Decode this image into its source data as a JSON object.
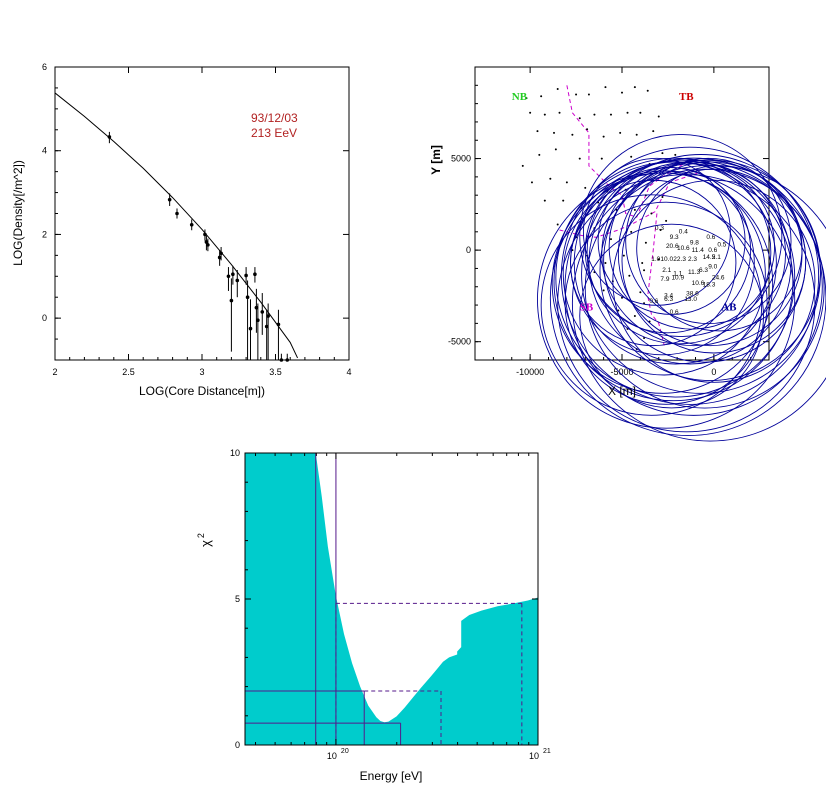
{
  "chart_data": [
    {
      "type": "scatter",
      "id": "ldf",
      "xlabel": "LOG(Core Distance[m])",
      "ylabel": "LOG(Density[/m^2])",
      "xlim": [
        2,
        4
      ],
      "ylim": [
        -1,
        6
      ],
      "xticks": [
        "2",
        "2.5",
        "3",
        "3.5",
        "4"
      ],
      "xtick_values": [
        2,
        2.5,
        3,
        3.5,
        4
      ],
      "yticks": [
        "0",
        "2",
        "4",
        "6"
      ],
      "ytick_values": [
        0,
        2,
        4,
        6
      ],
      "annotation": [
        "93/12/03",
        "213 EeV"
      ],
      "fit_curve": {
        "x": [
          2.0,
          2.2,
          2.4,
          2.6,
          2.8,
          3.0,
          3.2,
          3.4,
          3.6,
          3.65
        ],
        "y": [
          5.38,
          4.82,
          4.22,
          3.58,
          2.88,
          2.12,
          1.28,
          0.38,
          -0.58,
          -0.95
        ]
      },
      "points": [
        {
          "x": 2.37,
          "y": 4.33,
          "lo": 4.18,
          "hi": 4.45
        },
        {
          "x": 2.78,
          "y": 2.83,
          "lo": 2.68,
          "hi": 2.98
        },
        {
          "x": 2.83,
          "y": 2.5,
          "lo": 2.38,
          "hi": 2.62
        },
        {
          "x": 2.93,
          "y": 2.23,
          "lo": 2.1,
          "hi": 2.36
        },
        {
          "x": 3.02,
          "y": 2.0,
          "lo": 1.85,
          "hi": 2.12
        },
        {
          "x": 3.03,
          "y": 1.82,
          "lo": 1.62,
          "hi": 1.97
        },
        {
          "x": 3.04,
          "y": 1.75,
          "lo": 1.6,
          "hi": 1.9
        },
        {
          "x": 3.12,
          "y": 1.45,
          "lo": 1.25,
          "hi": 1.63
        },
        {
          "x": 3.13,
          "y": 1.55,
          "lo": 1.38,
          "hi": 1.7
        },
        {
          "x": 3.18,
          "y": 1.0,
          "lo": 0.65,
          "hi": 1.22
        },
        {
          "x": 3.2,
          "y": 0.42,
          "lo": -0.8,
          "hi": 0.95
        },
        {
          "x": 3.21,
          "y": 1.05,
          "lo": 0.8,
          "hi": 1.25
        },
        {
          "x": 3.24,
          "y": 0.9,
          "lo": 0.5,
          "hi": 1.15
        },
        {
          "x": 3.3,
          "y": 1.02,
          "lo": 0.8,
          "hi": 1.22
        },
        {
          "x": 3.31,
          "y": 0.5,
          "lo": -1.0,
          "hi": 0.9
        },
        {
          "x": 3.33,
          "y": -0.25,
          "lo": -1.0,
          "hi": 0.45
        },
        {
          "x": 3.36,
          "y": 1.05,
          "lo": 0.85,
          "hi": 1.22
        },
        {
          "x": 3.37,
          "y": 0.25,
          "lo": -0.35,
          "hi": 0.7
        },
        {
          "x": 3.38,
          "y": -0.05,
          "lo": -1.0,
          "hi": 0.35
        },
        {
          "x": 3.41,
          "y": 0.15,
          "lo": -0.4,
          "hi": 0.6
        },
        {
          "x": 3.44,
          "y": -0.2,
          "lo": -1.0,
          "hi": 0.2
        },
        {
          "x": 3.45,
          "y": 0.05,
          "lo": -1.0,
          "hi": 0.35
        },
        {
          "x": 3.52,
          "y": -0.15,
          "lo": -1.0,
          "hi": 0.2
        },
        {
          "x": 3.54,
          "y": -1.0,
          "lo": -1.0,
          "hi": -0.85
        },
        {
          "x": 3.58,
          "y": -1.0,
          "lo": -1.0,
          "hi": -0.85
        }
      ]
    },
    {
      "type": "scatter",
      "id": "array-map",
      "xlabel": "X [m]",
      "ylabel": "Y [m]",
      "xlim": [
        -13000,
        3000
      ],
      "ylim": [
        -6000,
        10000
      ],
      "xticks": [
        "-10000",
        "-5000",
        "0"
      ],
      "xtick_values": [
        -10000,
        -5000,
        0
      ],
      "yticks": [
        "-5000",
        "0",
        "5000"
      ],
      "ytick_values": [
        -5000,
        0,
        5000
      ],
      "regions": [
        {
          "label": "NB",
          "x": -11000,
          "y": 8200,
          "color": "#22cc22"
        },
        {
          "label": "TB",
          "x": -1900,
          "y": 8200,
          "color": "#cc0000"
        },
        {
          "label": "SB",
          "x": -7300,
          "y": -3300,
          "color": "#cc00cc"
        },
        {
          "label": "AB",
          "x": 400,
          "y": -3300,
          "color": "#000099"
        }
      ],
      "boundaries": [
        {
          "x": [
            -8000,
            -7800,
            -7700,
            -6800,
            -6800,
            -5600,
            -5000,
            -4800,
            -4200,
            -3500,
            -2800,
            -1500
          ],
          "y": [
            9000,
            8000,
            7500,
            6400,
            4600,
            3400,
            3000,
            2000,
            1800,
            3500,
            4000,
            4800
          ]
        },
        {
          "x": [
            -8400,
            -7200,
            -6400,
            -5200,
            -4500,
            -3200,
            -2400,
            -900
          ],
          "y": [
            1100,
            800,
            700,
            1100,
            1400,
            2100,
            3700,
            4200
          ]
        },
        {
          "x": [
            -3100,
            -3300,
            -3600,
            -3400,
            -3000,
            -2800,
            -2700
          ],
          "y": [
            2000,
            0,
            -2500,
            -3500,
            -4000,
            -4800,
            -5200
          ]
        }
      ],
      "stations": [
        [
          -10200,
          8300
        ],
        [
          -9400,
          8400
        ],
        [
          -8500,
          8800
        ],
        [
          -7500,
          8500
        ],
        [
          -6800,
          8500
        ],
        [
          -5900,
          8900
        ],
        [
          -5000,
          8600
        ],
        [
          -4300,
          8900
        ],
        [
          -3600,
          8700
        ],
        [
          -10000,
          7500
        ],
        [
          -9200,
          7400
        ],
        [
          -8400,
          7500
        ],
        [
          -7300,
          7200
        ],
        [
          -6500,
          7400
        ],
        [
          -5600,
          7400
        ],
        [
          -4700,
          7500
        ],
        [
          -4000,
          7500
        ],
        [
          -3000,
          7300
        ],
        [
          -9600,
          6500
        ],
        [
          -8700,
          6400
        ],
        [
          -7700,
          6300
        ],
        [
          -6900,
          6600
        ],
        [
          -6000,
          6200
        ],
        [
          -5100,
          6400
        ],
        [
          -4200,
          6300
        ],
        [
          -3300,
          6500
        ],
        [
          -10400,
          4600
        ],
        [
          -9500,
          5200
        ],
        [
          -8600,
          5500
        ],
        [
          -7300,
          5000
        ],
        [
          -6100,
          5000
        ],
        [
          -4500,
          5100
        ],
        [
          -3500,
          4700
        ],
        [
          -2800,
          5300
        ],
        [
          -2100,
          5200
        ],
        [
          -9900,
          3700
        ],
        [
          -8900,
          3900
        ],
        [
          -8000,
          3700
        ],
        [
          -7000,
          3400
        ],
        [
          -5800,
          3200
        ],
        [
          -4800,
          3300
        ],
        [
          -3700,
          3000
        ],
        [
          -2800,
          2900
        ],
        [
          -9200,
          2700
        ],
        [
          -8200,
          2700
        ],
        [
          -7200,
          2300
        ],
        [
          -6300,
          2600
        ],
        [
          -5300,
          2200
        ],
        [
          -4300,
          2200
        ],
        [
          -3400,
          2000
        ],
        [
          -2600,
          1600
        ],
        [
          -8500,
          1400
        ],
        [
          -7500,
          700
        ],
        [
          -6500,
          1200
        ],
        [
          -5600,
          600
        ],
        [
          -4500,
          1000
        ],
        [
          -3700,
          400
        ],
        [
          -2900,
          1100
        ],
        [
          -7700,
          0
        ],
        [
          -6900,
          -300
        ],
        [
          -5900,
          -700
        ],
        [
          -4900,
          -300
        ],
        [
          -3900,
          -700
        ],
        [
          -3000,
          -500
        ],
        [
          -6500,
          -1200
        ],
        [
          -5500,
          -1700
        ],
        [
          -4600,
          -1400
        ],
        [
          -3800,
          -1100
        ],
        [
          -6000,
          -2200
        ],
        [
          -5000,
          -2600
        ],
        [
          -4000,
          -2300
        ],
        [
          -3800,
          -2900
        ],
        [
          -5200,
          -3300
        ],
        [
          -4300,
          -3600
        ],
        [
          -3500,
          -3900
        ],
        [
          -4700,
          -4300
        ],
        [
          -3800,
          -4800
        ],
        [
          -4200,
          -5400
        ]
      ],
      "hits": [
        {
          "x": -3100,
          "y": 1000,
          "r": 80,
          "label": "0.3"
        },
        {
          "x": -1800,
          "y": 800,
          "r": 110,
          "label": "0.4"
        },
        {
          "x": -2300,
          "y": 500,
          "r": 80,
          "label": "9.3"
        },
        {
          "x": -1200,
          "y": 200,
          "r": 90,
          "label": "9.8"
        },
        {
          "x": -300,
          "y": 500,
          "r": 90,
          "label": "0.6"
        },
        {
          "x": 300,
          "y": 100,
          "r": 90,
          "label": "0.5"
        },
        {
          "x": -2500,
          "y": 0,
          "r": 90,
          "label": "20.6"
        },
        {
          "x": -1900,
          "y": -100,
          "r": 100,
          "label": "10.6"
        },
        {
          "x": -1100,
          "y": -200,
          "r": 100,
          "label": "11.4"
        },
        {
          "x": -200,
          "y": -200,
          "r": 100,
          "label": "0.6"
        },
        {
          "x": -3300,
          "y": -700,
          "r": 90,
          "label": "1.0"
        },
        {
          "x": -2800,
          "y": -700,
          "r": 100,
          "label": "10.0"
        },
        {
          "x": -2100,
          "y": -700,
          "r": 110,
          "label": "22.3"
        },
        {
          "x": -1300,
          "y": -700,
          "r": 110,
          "label": "2.3"
        },
        {
          "x": -500,
          "y": -600,
          "r": 110,
          "label": "14.5"
        },
        {
          "x": 0,
          "y": -600,
          "r": 100,
          "label": "2.1"
        },
        {
          "x": -2700,
          "y": -1300,
          "r": 110,
          "label": "2.1"
        },
        {
          "x": -2100,
          "y": -1500,
          "r": 130,
          "label": "1.1"
        },
        {
          "x": -1300,
          "y": -1400,
          "r": 140,
          "label": "11.3"
        },
        {
          "x": -700,
          "y": -1300,
          "r": 130,
          "label": "6.3"
        },
        {
          "x": -200,
          "y": -1100,
          "r": 120,
          "label": "9.0"
        },
        {
          "x": -2800,
          "y": -1800,
          "r": 120,
          "label": "7.9"
        },
        {
          "x": -2200,
          "y": -1700,
          "r": 130,
          "label": "10.9"
        },
        {
          "x": -1100,
          "y": -2000,
          "r": 140,
          "label": "10.6"
        },
        {
          "x": -500,
          "y": -2100,
          "r": 130,
          "label": "18.3"
        },
        {
          "x": 0,
          "y": -1700,
          "r": 110,
          "label": "24.6"
        },
        {
          "x": -1400,
          "y": -2600,
          "r": 150,
          "label": "38.6"
        },
        {
          "x": -2600,
          "y": -2700,
          "r": 140,
          "label": "3.4"
        },
        {
          "x": -3400,
          "y": -3000,
          "r": 120,
          "label": "0.6"
        },
        {
          "x": -2600,
          "y": -2900,
          "r": 110,
          "label": "6.3"
        },
        {
          "x": -1500,
          "y": -2900,
          "r": 140,
          "label": "13.0"
        },
        {
          "x": -200,
          "y": -2900,
          "r": 150,
          "label": ""
        },
        {
          "x": -2300,
          "y": -3600,
          "r": 100,
          "label": "0.6"
        }
      ]
    },
    {
      "type": "area",
      "id": "chi2",
      "xlabel": "Energy [eV]",
      "ylabel": "χ",
      "ylabel_sup": "2",
      "xscale": "log",
      "xlim_log10": [
        19.55,
        21.0
      ],
      "ylim": [
        0,
        10
      ],
      "xticks": [
        {
          "value_log10": 20,
          "base": "10",
          "exp": "20"
        },
        {
          "value_log10": 21,
          "base": "10",
          "exp": "21"
        }
      ],
      "yticks": [
        "0",
        "5",
        "10"
      ],
      "ytick_values": [
        0,
        5,
        10
      ],
      "curve": {
        "x_log10": [
          19.55,
          19.9,
          19.93,
          19.96,
          20.0,
          20.04,
          20.08,
          20.12,
          20.16,
          20.2,
          20.22,
          20.24,
          20.26,
          20.3,
          20.34,
          20.38,
          20.42,
          20.47,
          20.5,
          20.53,
          20.56,
          20.6,
          20.6,
          20.62,
          20.62,
          20.66,
          20.72,
          20.8,
          20.88,
          20.95,
          21.0
        ],
        "y": [
          10,
          10,
          8.5,
          6.8,
          5.1,
          3.8,
          2.8,
          2.0,
          1.35,
          0.95,
          0.82,
          0.78,
          0.8,
          0.98,
          1.28,
          1.62,
          1.95,
          2.35,
          2.6,
          2.85,
          3.0,
          3.1,
          3.2,
          3.35,
          4.25,
          4.45,
          4.6,
          4.75,
          4.85,
          4.95,
          5.05
        ]
      },
      "fill_color": "#00cccc",
      "solid_levels": [
        {
          "y": 0.75,
          "x_log10": [
            19.55,
            20.32
          ]
        },
        {
          "y": 1.85,
          "x_log10": [
            19.55,
            20.14
          ]
        }
      ],
      "dashed_levels": [
        {
          "y": 4.85,
          "x_log10": [
            20.0,
            20.92
          ],
          "drops": [
            20.0,
            20.92
          ]
        },
        {
          "y": 1.85,
          "x_log10": [
            20.14,
            20.52
          ],
          "drops": [
            20.52
          ]
        }
      ],
      "solid_drops_log10": [
        19.9,
        20.0,
        20.14,
        20.32
      ]
    }
  ]
}
